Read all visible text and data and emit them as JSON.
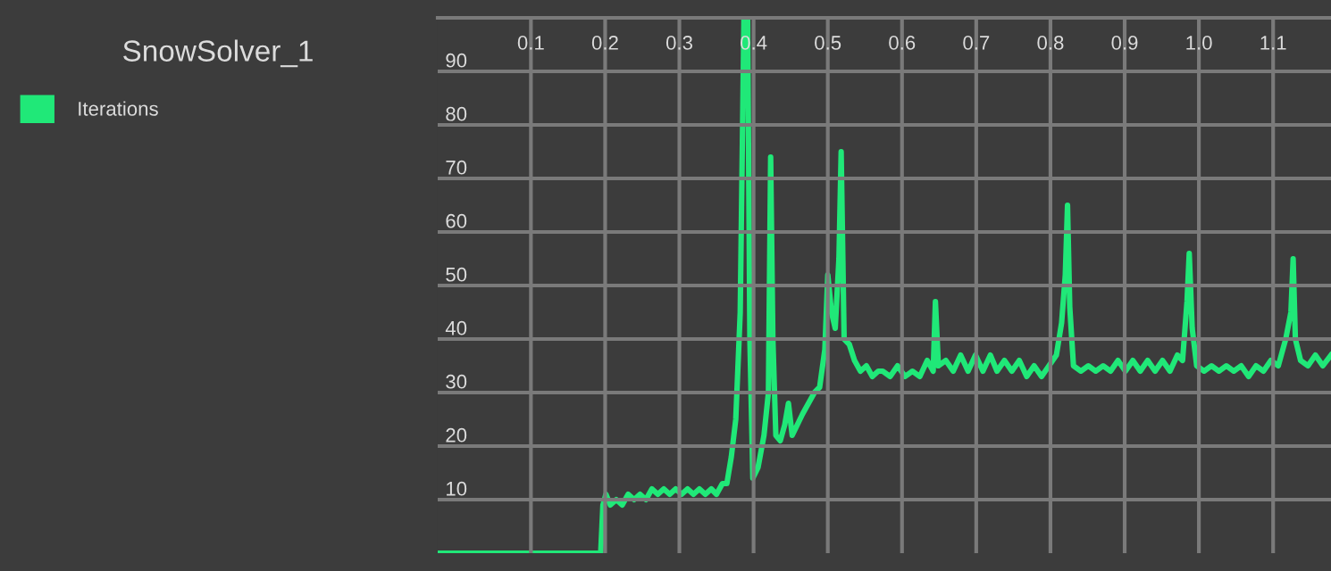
{
  "chart_data": {
    "type": "line",
    "title": "SnowSolver_1",
    "xlim": [
      -0.0256,
      1.178
    ],
    "ylim": [
      0,
      100
    ],
    "xticks": [
      {
        "value": 0.1,
        "label": "0.1"
      },
      {
        "value": 0.2,
        "label": "0.2"
      },
      {
        "value": 0.3,
        "label": "0.3"
      },
      {
        "value": 0.4,
        "label": "0.4"
      },
      {
        "value": 0.5,
        "label": "0.5"
      },
      {
        "value": 0.6,
        "label": "0.6"
      },
      {
        "value": 0.7,
        "label": "0.7"
      },
      {
        "value": 0.8,
        "label": "0.8"
      },
      {
        "value": 0.9,
        "label": "0.9"
      },
      {
        "value": 1.0,
        "label": "1.0"
      },
      {
        "value": 1.1,
        "label": "1.1"
      }
    ],
    "yticks": [
      10,
      20,
      30,
      40,
      50,
      60,
      70,
      80,
      90
    ],
    "grid": true,
    "legend": "left",
    "marker": "none",
    "line_style": "solid",
    "series": [
      {
        "name": "Iterations",
        "color": "#20e878",
        "x": [
          -0.0256,
          0.194,
          0.197,
          0.201,
          0.207,
          0.215,
          0.223,
          0.231,
          0.239,
          0.247,
          0.255,
          0.263,
          0.271,
          0.279,
          0.287,
          0.295,
          0.303,
          0.311,
          0.319,
          0.327,
          0.335,
          0.343,
          0.35,
          0.358,
          0.364,
          0.37,
          0.376,
          0.382,
          0.387,
          0.392,
          0.395,
          0.399,
          0.406,
          0.414,
          0.42,
          0.423,
          0.426,
          0.43,
          0.436,
          0.442,
          0.447,
          0.452,
          0.459,
          0.466,
          0.474,
          0.482,
          0.489,
          0.496,
          0.5,
          0.505,
          0.51,
          0.515,
          0.518,
          0.522,
          0.529,
          0.536,
          0.544,
          0.552,
          0.56,
          0.568,
          0.574,
          0.584,
          0.594,
          0.604,
          0.614,
          0.624,
          0.634,
          0.642,
          0.645,
          0.649,
          0.659,
          0.669,
          0.679,
          0.689,
          0.699,
          0.709,
          0.719,
          0.728,
          0.738,
          0.748,
          0.758,
          0.768,
          0.778,
          0.788,
          0.798,
          0.808,
          0.815,
          0.82,
          0.823,
          0.826,
          0.831,
          0.841,
          0.851,
          0.861,
          0.871,
          0.881,
          0.891,
          0.901,
          0.911,
          0.921,
          0.931,
          0.941,
          0.951,
          0.961,
          0.971,
          0.978,
          0.984,
          0.987,
          0.991,
          0.997,
          1.007,
          1.017,
          1.027,
          1.037,
          1.047,
          1.057,
          1.067,
          1.077,
          1.087,
          1.097,
          1.107,
          1.117,
          1.124,
          1.127,
          1.13,
          1.137,
          1.147,
          1.157,
          1.167,
          1.178
        ],
        "values": [
          0,
          0,
          9,
          11,
          9,
          10,
          9,
          11,
          10,
          11,
          10,
          12,
          11,
          12,
          11,
          12,
          11,
          12,
          11,
          12,
          11,
          12,
          11,
          13,
          13,
          18,
          25,
          45,
          100,
          100,
          40,
          14,
          16,
          22,
          30,
          74,
          40,
          22,
          21,
          24,
          28,
          22,
          24,
          26,
          28,
          30,
          31,
          38,
          52,
          45,
          42,
          55,
          75,
          40,
          39,
          36,
          34,
          35,
          33,
          34,
          34,
          33,
          35,
          33,
          34,
          33,
          36,
          34,
          47,
          35,
          36,
          34,
          37,
          34,
          37,
          34,
          37,
          34,
          36,
          34,
          36,
          33,
          35,
          33,
          35,
          37,
          43,
          52,
          65,
          46,
          35,
          34,
          35,
          34,
          35,
          34,
          36,
          34,
          36,
          34,
          36,
          34,
          36,
          34,
          37,
          36,
          47,
          56,
          42,
          35,
          34,
          35,
          34,
          35,
          34,
          35,
          33,
          35,
          34,
          36,
          35,
          40,
          45,
          55,
          40,
          36,
          35,
          37,
          35,
          37
        ]
      }
    ]
  }
}
